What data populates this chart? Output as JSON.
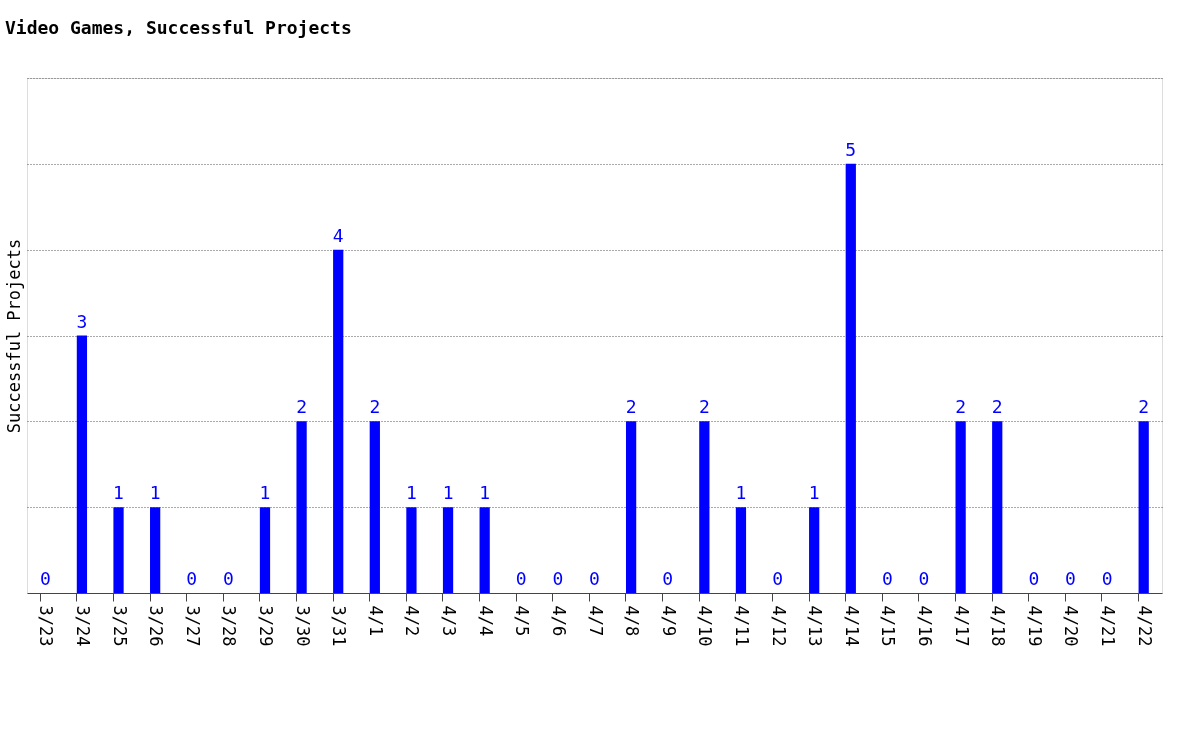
{
  "chart_data": {
    "type": "bar",
    "title": "Video Games, Successful Projects",
    "ylabel": "Successful Projects",
    "categories": [
      "3/23",
      "3/24",
      "3/25",
      "3/26",
      "3/27",
      "3/28",
      "3/29",
      "3/30",
      "3/31",
      "4/1",
      "4/2",
      "4/3",
      "4/4",
      "4/5",
      "4/6",
      "4/7",
      "4/8",
      "4/9",
      "4/10",
      "4/11",
      "4/12",
      "4/13",
      "4/14",
      "4/15",
      "4/16",
      "4/17",
      "4/18",
      "4/19",
      "4/20",
      "4/21",
      "4/22"
    ],
    "values": [
      0,
      3,
      1,
      1,
      0,
      0,
      1,
      2,
      4,
      2,
      1,
      1,
      1,
      0,
      0,
      0,
      2,
      0,
      2,
      1,
      0,
      1,
      5,
      0,
      0,
      2,
      2,
      0,
      0,
      0,
      2
    ],
    "color": "#0000ff",
    "ylim": [
      0,
      6
    ],
    "yticks": [
      {
        "value": 1,
        "label": null
      },
      {
        "value": 2,
        "label": null
      },
      {
        "value": 3,
        "label": null
      },
      {
        "value": 4,
        "label": null
      },
      {
        "value": 5,
        "label": null
      },
      {
        "value": 6,
        "label": null
      }
    ],
    "tick_labels": "x",
    "grid": "y",
    "data_labels": true
  }
}
